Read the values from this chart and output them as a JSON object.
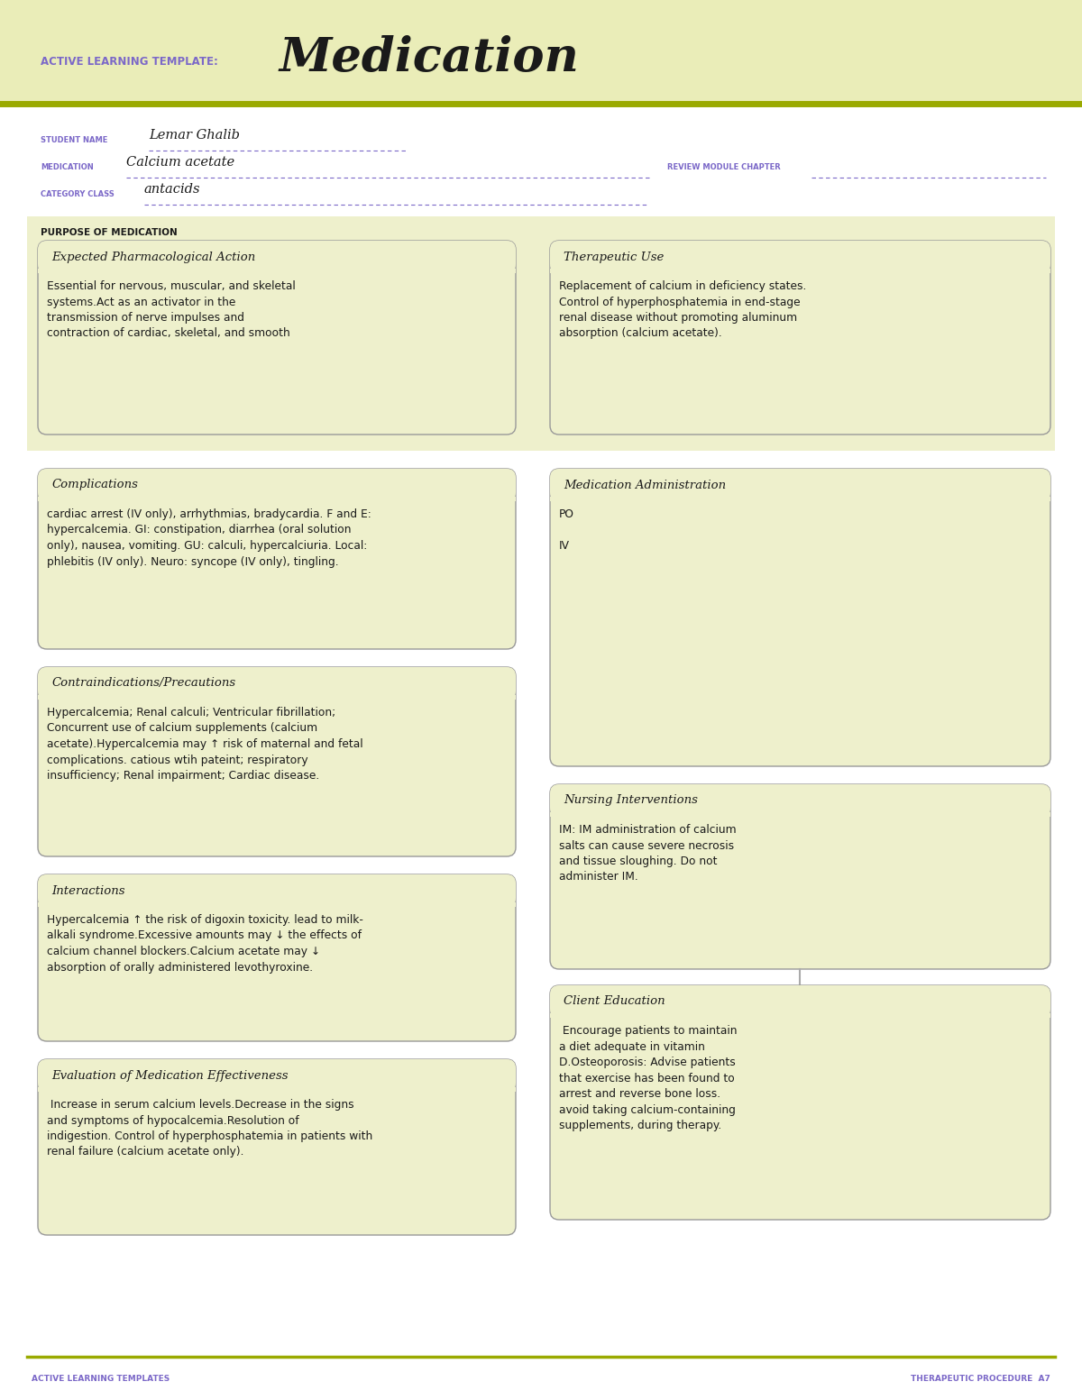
{
  "white": "#ffffff",
  "header_bg": "#eaedb8",
  "olive_line": "#9aaa00",
  "box_bg": "#eef0cc",
  "box_border": "#aaaaaa",
  "text_dark": "#1a1a1a",
  "text_purple": "#7b68c8",
  "title_label": "ACTIVE LEARNING TEMPLATE:",
  "title_main": "Medication",
  "student_label": "STUDENT NAME",
  "student_name": "Lemar Ghalib",
  "medication_label": "MEDICATION",
  "medication_name": "Calcium acetate",
  "review_label": "REVIEW MODULE CHAPTER",
  "category_label": "CATEGORY CLASS",
  "category_name": "antacids",
  "purpose_label": "PURPOSE OF MEDICATION",
  "box1_title": "Expected Pharmacological Action",
  "box1_text": "Essential for nervous, muscular, and skeletal\nsystems.Act as an activator in the\ntransmission of nerve impulses and\ncontraction of cardiac, skeletal, and smooth",
  "box2_title": "Therapeutic Use",
  "box2_text": "Replacement of calcium in deficiency states.\nControl of hyperphosphatemia in end-stage\nrenal disease without promoting aluminum\nabsorption (calcium acetate).",
  "box3_title": "Complications",
  "box3_text": "cardiac arrest (IV only), arrhythmias, bradycardia. F and E:\nhypercalcemia. GI: constipation, diarrhea (oral solution\nonly), nausea, vomiting. GU: calculi, hypercalciuria. Local:\nphlebitis (IV only). Neuro: syncope (IV only), tingling.",
  "box4_title": "Medication Administration",
  "box4_text": "PO\n\nIV",
  "box5_title": "Contraindications/Precautions",
  "box5_text": "Hypercalcemia; Renal calculi; Ventricular fibrillation;\nConcurrent use of calcium supplements (calcium\nacetate).Hypercalcemia may ↑ risk of maternal and fetal\ncomplications. catious wtih pateint; respiratory\ninsufficiency; Renal impairment; Cardiac disease.",
  "box6_title": "Nursing Interventions",
  "box6_text": "IM: IM administration of calcium\nsalts can cause severe necrosis\nand tissue sloughing. Do not\nadminister IM.",
  "box7_title": "Interactions",
  "box7_text": "Hypercalcemia ↑ the risk of digoxin toxicity. lead to milk-\nalkali syndrome.Excessive amounts may ↓ the effects of\ncalcium channel blockers.Calcium acetate may ↓\nabsorption of orally administered levothyroxine.",
  "box8_title": "Client Education",
  "box8_text": " Encourage patients to maintain\na diet adequate in vitamin\nD.Osteoporosis: Advise patients\nthat exercise has been found to\narrest and reverse bone loss.\navoid taking calcium-containing\nsupplements, during therapy.",
  "box9_title": "Evaluation of Medication Effectiveness",
  "box9_text": " Increase in serum calcium levels.Decrease in the signs\nand symptoms of hypocalcemia.Resolution of\nindigestion. Control of hyperphosphatemia in patients with\nrenal failure (calcium acetate only).",
  "footer_left": "ACTIVE LEARNING TEMPLATES",
  "footer_right": "THERAPEUTIC PROCEDURE  A7"
}
